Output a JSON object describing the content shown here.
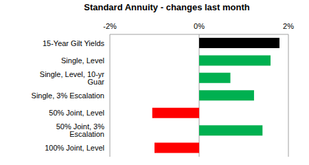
{
  "chart_data": {
    "type": "bar",
    "title": "Standard Annuity - changes last month",
    "orientation": "horizontal",
    "categories": [
      "15-Year Gilt Yields",
      "Single, Level",
      "Single, Level, 10-yr Guar",
      "Single, 3% Escalation",
      "50% Joint, Level",
      "50% Joint, 3% Escalation",
      "100% Joint, Level"
    ],
    "values": [
      1.8,
      1.6,
      0.7,
      1.23,
      -1.05,
      1.42,
      -1.0
    ],
    "colors": [
      "#000000",
      "#00b050",
      "#00b050",
      "#00b050",
      "#ff0000",
      "#00b050",
      "#ff0000"
    ],
    "xlim": [
      -2,
      2
    ],
    "xticks": [
      {
        "value": -2,
        "label": "-2%"
      },
      {
        "value": 0,
        "label": "0%"
      },
      {
        "value": 2,
        "label": "2%"
      }
    ],
    "grid": true
  }
}
